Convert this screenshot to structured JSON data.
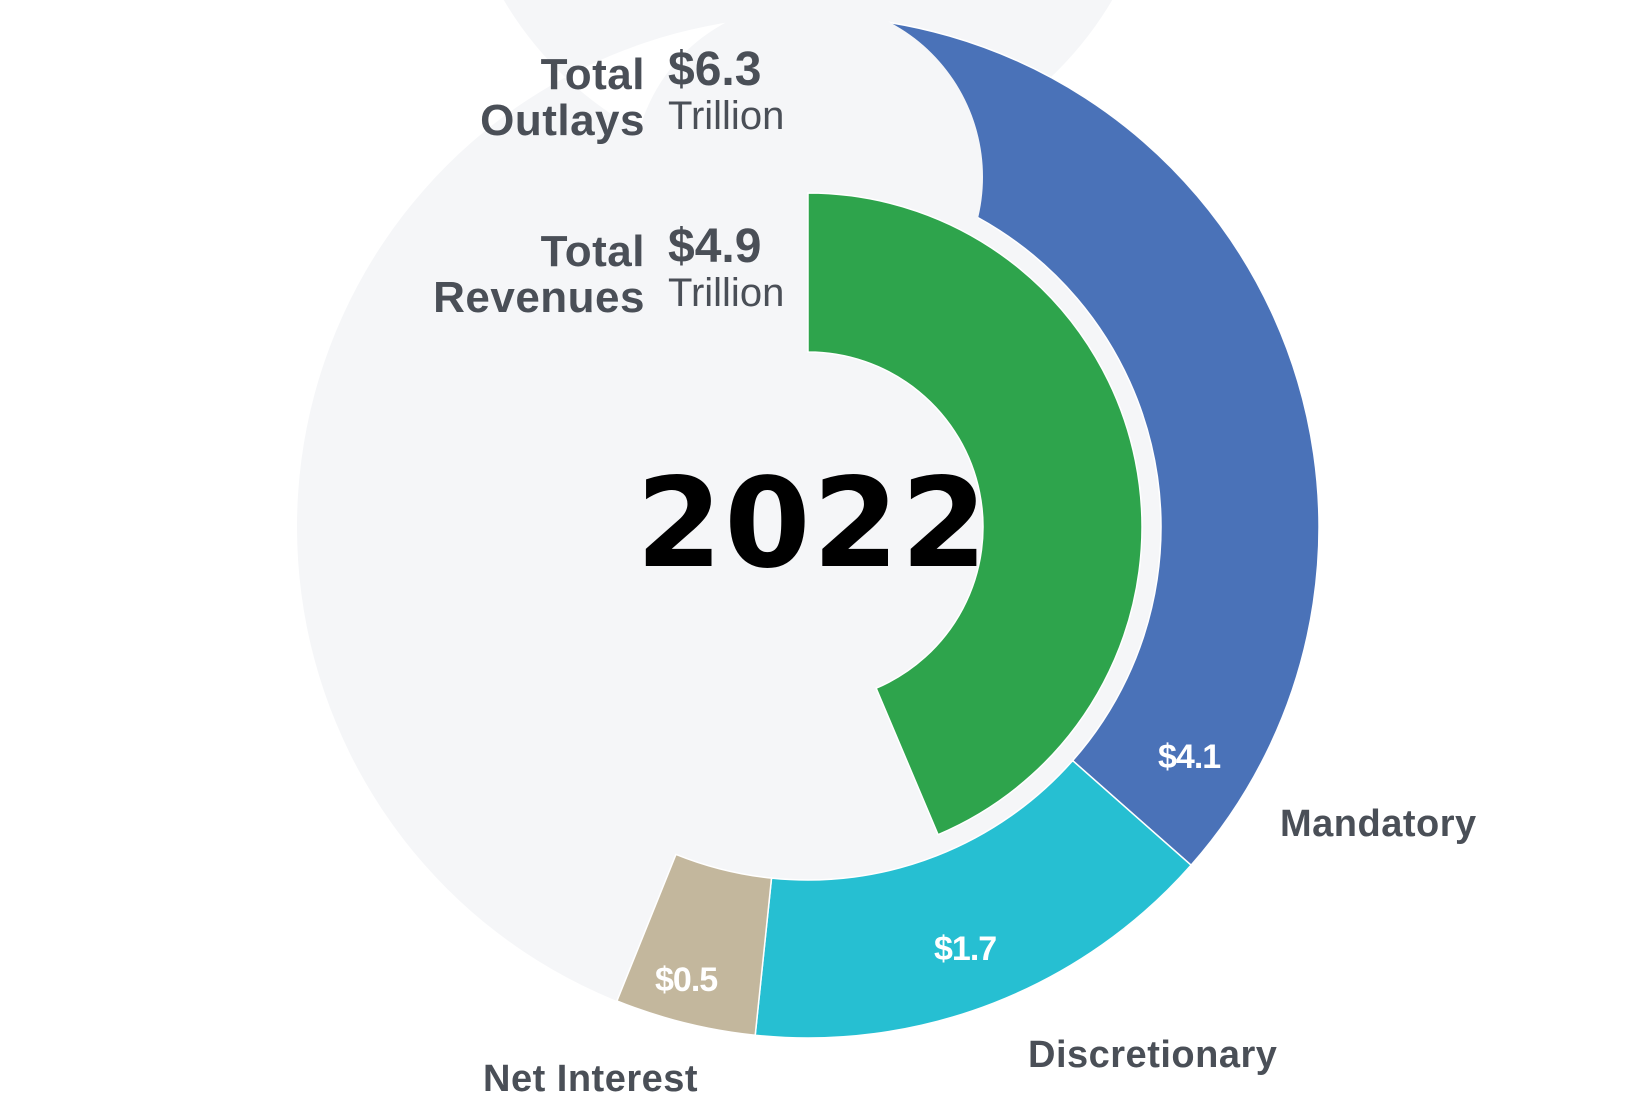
{
  "chart_data": {
    "type": "pie",
    "subtype": "nested-donut",
    "title": "2022",
    "full_circle_value": 11.23,
    "outer_ring": {
      "name": "Total Outlays",
      "total": 6.3,
      "unit": "Trillion",
      "segments": [
        {
          "name": "Mandatory",
          "value": 4.1,
          "label": "$4.1",
          "color": "#4a72b8"
        },
        {
          "name": "Discretionary",
          "value": 1.7,
          "label": "$1.7",
          "color": "#26bfd2"
        },
        {
          "name": "Net Interest",
          "value": 0.5,
          "label": "$0.5",
          "color": "#c3b79d"
        }
      ]
    },
    "inner_ring": {
      "name": "Total Revenues",
      "total": 4.9,
      "unit": "Trillion",
      "segments": [
        {
          "name": "Revenues",
          "value": 4.9,
          "color": "#2ea44c"
        }
      ]
    },
    "background_ring_color": "#f5f6f8"
  },
  "center": {
    "year": "2022"
  },
  "totals": {
    "outlays": {
      "line1": "Total",
      "line2": "Outlays",
      "value": "$6.3",
      "unit": "Trillion"
    },
    "revenues": {
      "line1": "Total",
      "line2": "Revenues",
      "value": "$4.9",
      "unit": "Trillion"
    }
  },
  "labels": {
    "mandatory": {
      "name": "Mandatory",
      "value": "$4.1"
    },
    "discretionary": {
      "name": "Discretionary",
      "value": "$1.7"
    },
    "net_interest": {
      "name": "Net Interest",
      "value": "$0.5"
    }
  }
}
